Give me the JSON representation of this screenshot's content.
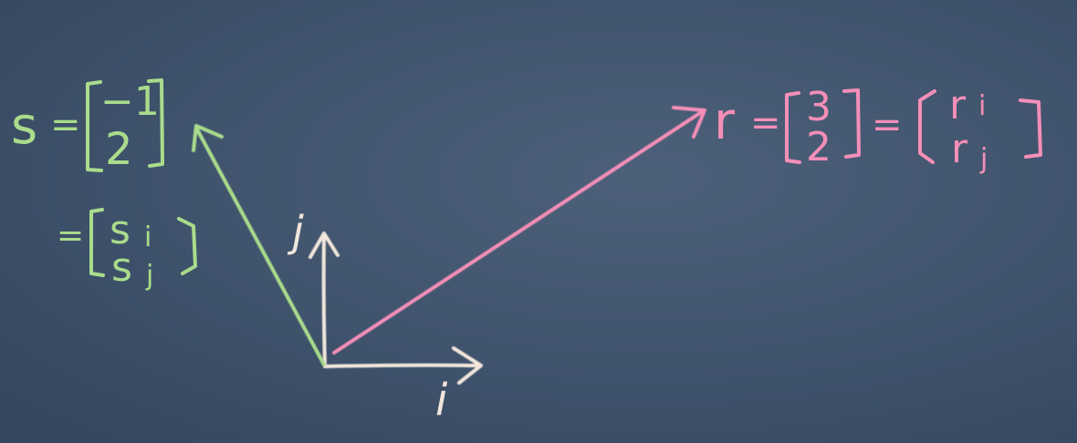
{
  "colors": {
    "background": "#42556d",
    "basis": "#f1e6dc",
    "vector_s": "#a9dc8c",
    "vector_r": "#f48fb8"
  },
  "basis": {
    "i_label": "i",
    "j_label": "j"
  },
  "vector_s": {
    "name": "s",
    "equals": "=",
    "components": [
      "−1",
      "2"
    ],
    "symbolic": [
      "s",
      "s"
    ],
    "subscripts": [
      "i",
      "j"
    ]
  },
  "vector_r": {
    "name": "r",
    "equals": "=",
    "components": [
      "3",
      "2"
    ],
    "symbolic": [
      "r",
      "r"
    ],
    "subscripts": [
      "i",
      "j"
    ]
  }
}
